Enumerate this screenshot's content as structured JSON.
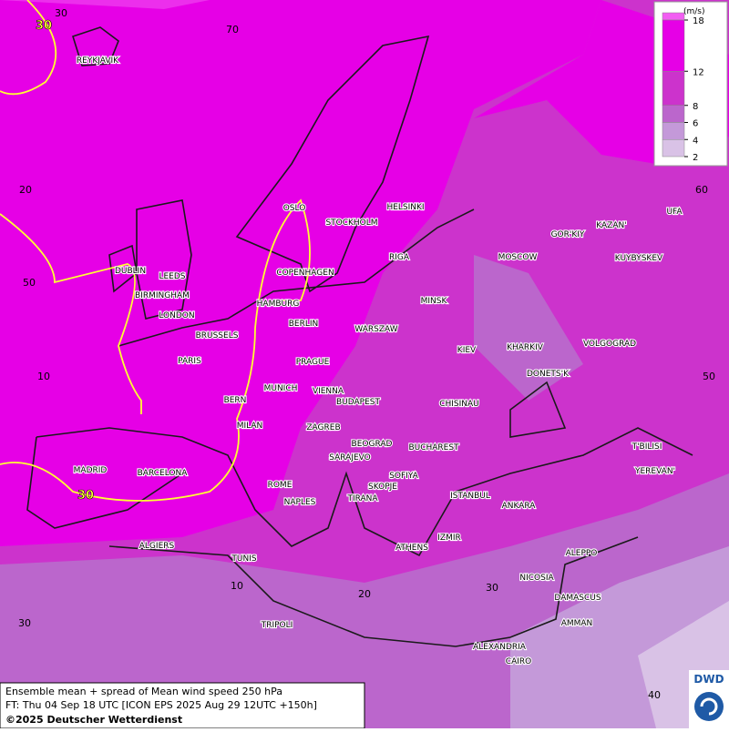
{
  "map": {
    "cities": [
      "REYKJAVIK",
      "OSLO",
      "STOCKHOLM",
      "HELSINKI",
      "DUBLIN",
      "LEEDS",
      "BIRMINGHAM",
      "LONDON",
      "COPENHAGEN",
      "RIGA",
      "MOSCOW",
      "GOR'KIY",
      "KAZAN'",
      "UFA",
      "KUYBYSKEV",
      "MINSK",
      "HAMBURG",
      "BERLIN",
      "BRUSSELS",
      "WARSZAW",
      "PARIS",
      "PRAGUE",
      "KIEV",
      "KHARKIV",
      "VOLGOGRAD",
      "DONETS'K",
      "MUNICH",
      "VIENNA",
      "BERN",
      "BUDAPEST",
      "CHISINAU",
      "MILAN",
      "ZAGREB",
      "BEOGRAD",
      "BUCHAREST",
      "T'BILISI",
      "SARAJEVO",
      "MADRID",
      "BARCELONA",
      "SOFIYA",
      "YEREVAN'",
      "ROME",
      "SKOPJE",
      "TIRANA",
      "ISTANBUL",
      "NAPLES",
      "ANKARA",
      "IZMIR",
      "ALGIERS",
      "ATHENS",
      "ALEPPO",
      "TUNIS",
      "NICOSIA",
      "DAMASCUS",
      "AMMAN",
      "TRIPOLI",
      "ALEXANDRIA",
      "CAIRO"
    ],
    "grid_labels": [
      30,
      70,
      20,
      60,
      50,
      10,
      50,
      20,
      30,
      10,
      30,
      40
    ],
    "contour_labels": [
      30,
      30
    ],
    "legend": {
      "unit": "(m/s)",
      "levels": [
        {
          "value": 18,
          "color": "#f25ef2"
        },
        {
          "value": 12,
          "color": "#e600e6"
        },
        {
          "value": 8,
          "color": "#cc33cc"
        },
        {
          "value": 6,
          "color": "#bb66cc"
        },
        {
          "value": 4,
          "color": "#c499d9"
        },
        {
          "value": 2,
          "color": "#d9c2e6"
        }
      ]
    },
    "footer": {
      "line1": "Ensemble mean + spread of Mean wind speed 250 hPa",
      "line2": "FT: Thu 04 Sep 18 UTC [ICON EPS 2025 Aug 29 12UTC +150h]",
      "line3": "©2025 Deutscher Wetterdienst"
    },
    "logo": "DWD"
  }
}
